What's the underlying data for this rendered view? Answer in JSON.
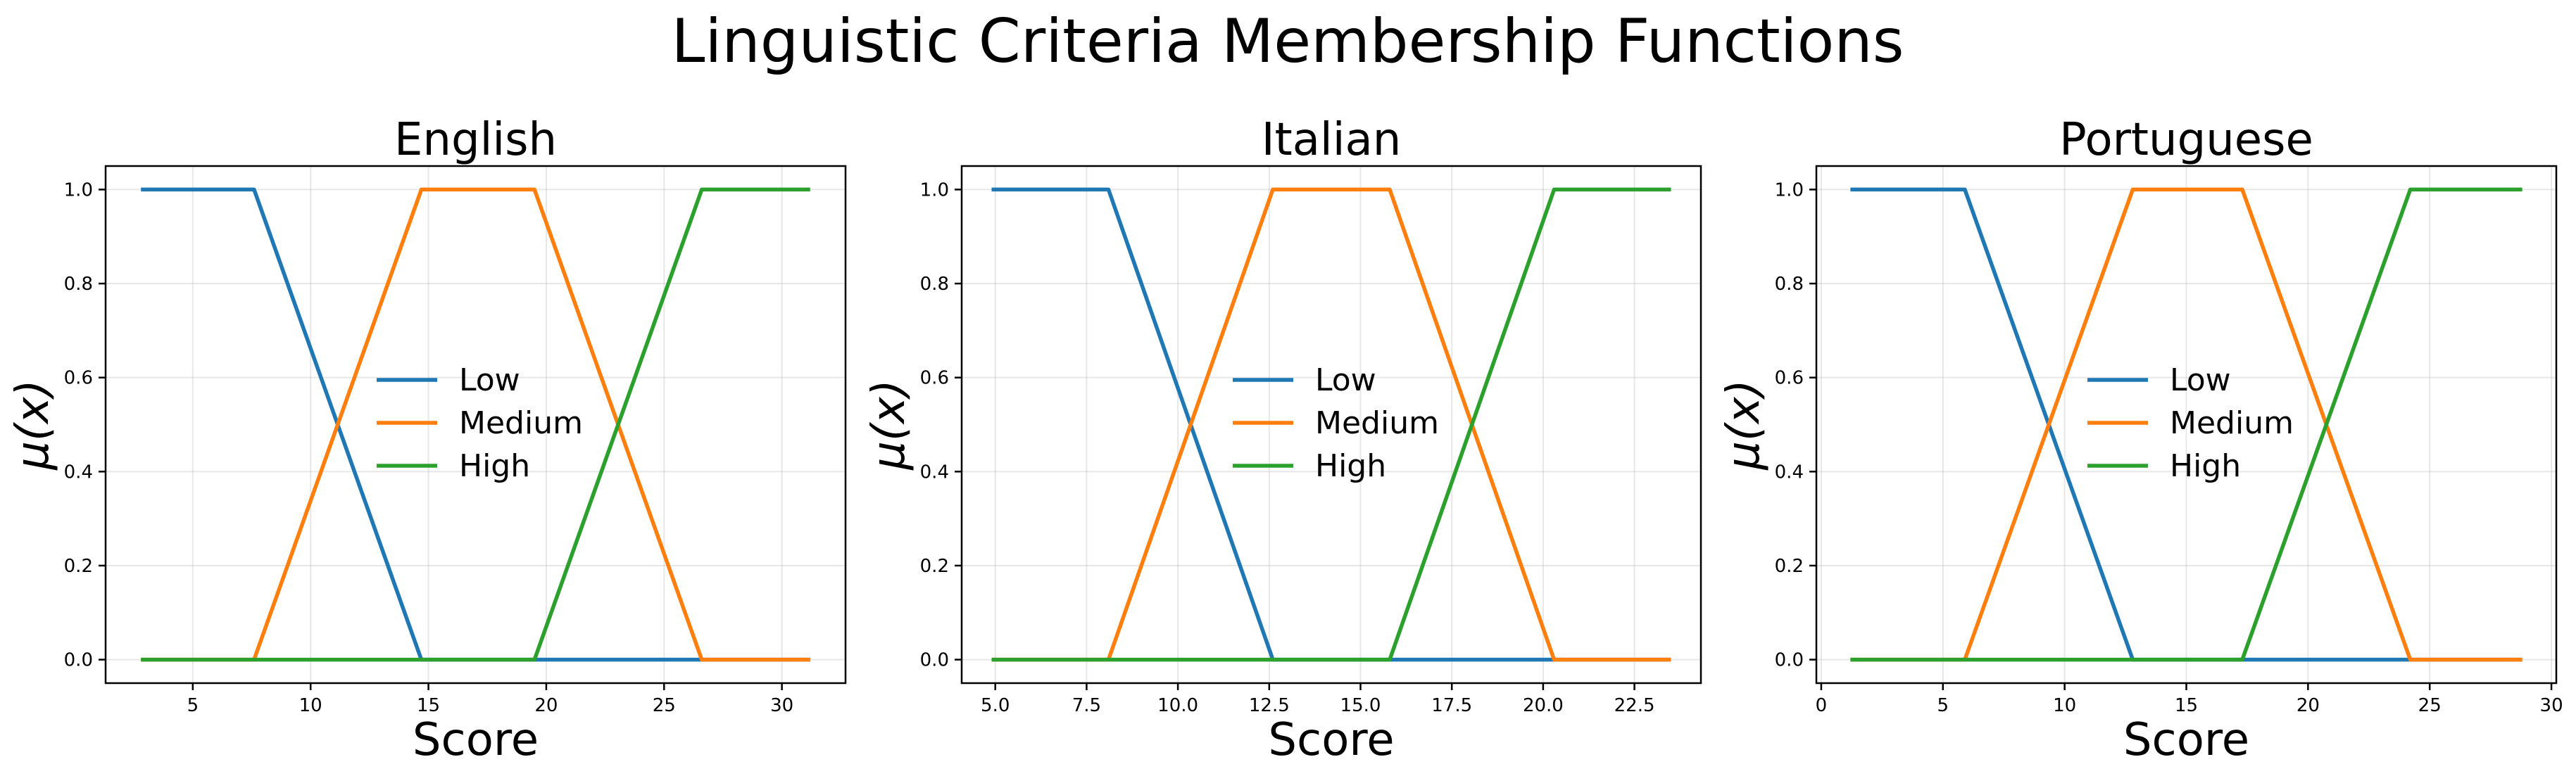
{
  "figure_title": "Linguistic Criteria Membership Functions",
  "colors": {
    "Low": "#1f77b4",
    "Medium": "#ff7f0e",
    "High": "#2ca02c"
  },
  "chart_data": [
    {
      "type": "line",
      "title": "English",
      "xlabel": "Score",
      "ylabel": "μ(x)",
      "xlim": [
        1.3,
        32.7
      ],
      "ylim": [
        -0.05,
        1.05
      ],
      "xticks": [
        5,
        10,
        15,
        20,
        25,
        30
      ],
      "xtick_labels": [
        "5",
        "10",
        "15",
        "20",
        "25",
        "30"
      ],
      "yticks": [
        0.0,
        0.2,
        0.4,
        0.6,
        0.8,
        1.0
      ],
      "ytick_labels": [
        "0.0",
        "0.2",
        "0.4",
        "0.6",
        "0.8",
        "1.0"
      ],
      "grid": true,
      "legend": "center",
      "series": [
        {
          "name": "Low",
          "x": [
            2.8,
            7.6,
            14.7,
            31.2
          ],
          "y": [
            1,
            1,
            0,
            0
          ]
        },
        {
          "name": "Medium",
          "x": [
            2.8,
            7.6,
            14.7,
            19.5,
            26.6,
            31.2
          ],
          "y": [
            0,
            0,
            1,
            1,
            0,
            0
          ]
        },
        {
          "name": "High",
          "x": [
            2.8,
            19.5,
            26.6,
            31.2
          ],
          "y": [
            0,
            0,
            1,
            1
          ]
        }
      ]
    },
    {
      "type": "line",
      "title": "Italian",
      "xlabel": "Score",
      "ylabel": "μ(x)",
      "xlim": [
        4.08,
        24.32
      ],
      "ylim": [
        -0.05,
        1.05
      ],
      "xticks": [
        5.0,
        7.5,
        10.0,
        12.5,
        15.0,
        17.5,
        20.0,
        22.5
      ],
      "xtick_labels": [
        "5.0",
        "7.5",
        "10.0",
        "12.5",
        "15.0",
        "17.5",
        "20.0",
        "22.5"
      ],
      "yticks": [
        0.0,
        0.2,
        0.4,
        0.6,
        0.8,
        1.0
      ],
      "ytick_labels": [
        "0.0",
        "0.2",
        "0.4",
        "0.6",
        "0.8",
        "1.0"
      ],
      "grid": true,
      "legend": "center",
      "series": [
        {
          "name": "Low",
          "x": [
            4.9,
            8.1,
            12.6,
            23.5
          ],
          "y": [
            1,
            1,
            0,
            0
          ]
        },
        {
          "name": "Medium",
          "x": [
            4.9,
            8.1,
            12.6,
            15.8,
            20.3,
            23.5
          ],
          "y": [
            0,
            0,
            1,
            1,
            0,
            0
          ]
        },
        {
          "name": "High",
          "x": [
            4.9,
            15.8,
            20.3,
            23.5
          ],
          "y": [
            0,
            0,
            1,
            1
          ]
        }
      ]
    },
    {
      "type": "line",
      "title": "Portuguese",
      "xlabel": "Score",
      "ylabel": "μ(x)",
      "xlim": [
        -0.2,
        30.2
      ],
      "ylim": [
        -0.05,
        1.05
      ],
      "xticks": [
        0,
        5,
        10,
        15,
        20,
        25,
        30
      ],
      "xtick_labels": [
        "0",
        "5",
        "10",
        "15",
        "20",
        "25",
        "30"
      ],
      "yticks": [
        0.0,
        0.2,
        0.4,
        0.6,
        0.8,
        1.0
      ],
      "ytick_labels": [
        "0.0",
        "0.2",
        "0.4",
        "0.6",
        "0.8",
        "1.0"
      ],
      "grid": true,
      "legend": "center",
      "series": [
        {
          "name": "Low",
          "x": [
            1.2,
            5.9,
            12.8,
            28.8
          ],
          "y": [
            1,
            1,
            0,
            0
          ]
        },
        {
          "name": "Medium",
          "x": [
            1.2,
            5.9,
            12.8,
            17.3,
            24.2,
            28.8
          ],
          "y": [
            0,
            0,
            1,
            1,
            0,
            0
          ]
        },
        {
          "name": "High",
          "x": [
            1.2,
            17.3,
            24.2,
            28.8
          ],
          "y": [
            0,
            0,
            1,
            1
          ]
        }
      ]
    }
  ]
}
